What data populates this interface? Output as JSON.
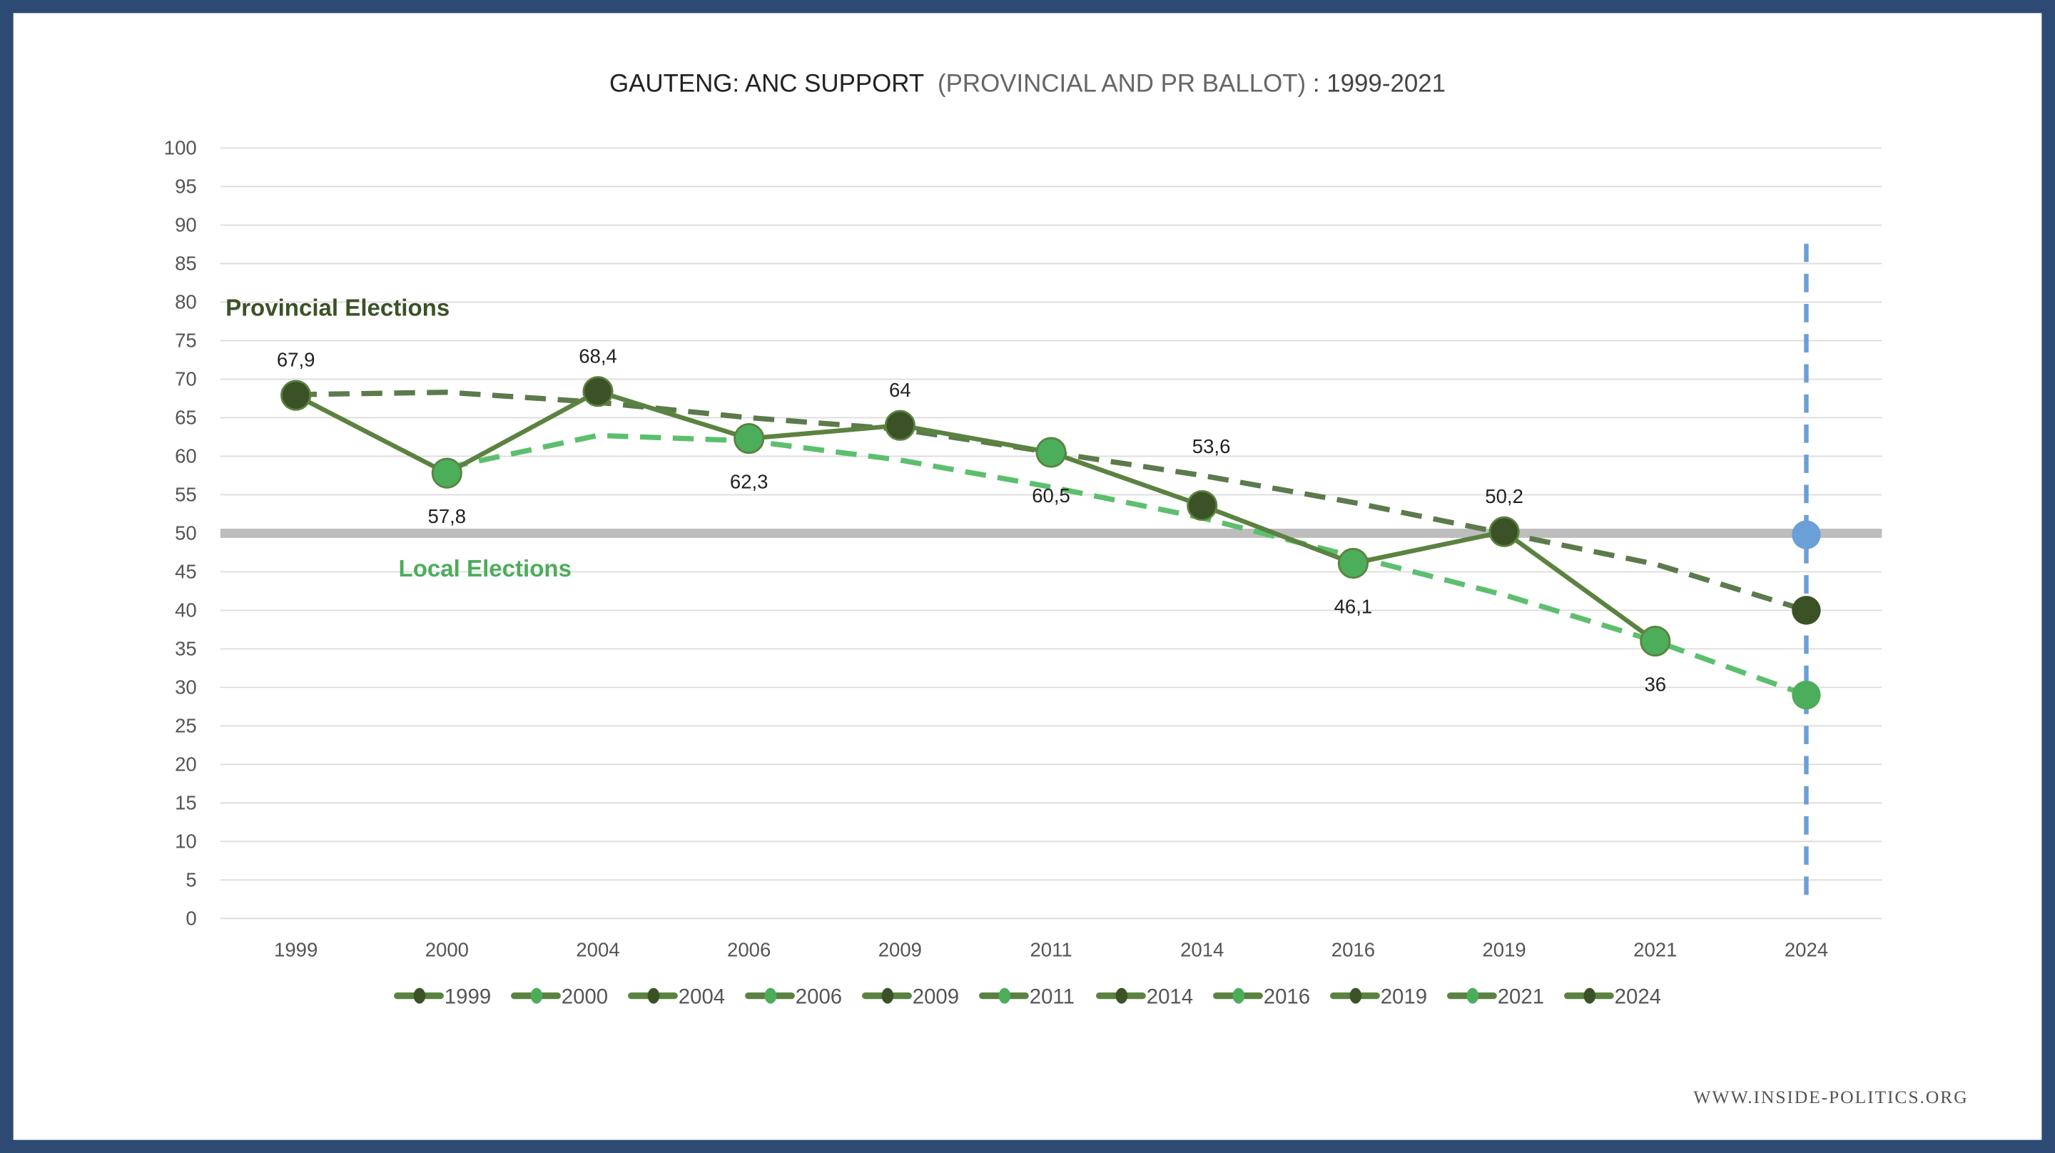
{
  "chart_data": {
    "type": "line",
    "title_bold": "GAUTENG: ANC SUPPORT",
    "title_light": "(PROVINCIAL AND PR BALLOT)",
    "title_end": ": 1999-2021",
    "categories": [
      "1999",
      "2000",
      "2004",
      "2006",
      "2009",
      "2011",
      "2014",
      "2016",
      "2019",
      "2021",
      "2024"
    ],
    "ylim": [
      0,
      100
    ],
    "yticks": [
      0,
      5,
      10,
      15,
      20,
      25,
      30,
      35,
      40,
      45,
      50,
      55,
      60,
      65,
      70,
      75,
      80,
      85,
      90,
      95,
      100
    ],
    "series": [
      {
        "name": "ANC support",
        "values": [
          67.9,
          57.8,
          68.4,
          62.3,
          64,
          60.5,
          53.6,
          46.1,
          50.2,
          36,
          null
        ],
        "labels": [
          "67,9",
          "57,8",
          "68,4",
          "62,3",
          "64",
          "60,5",
          "53,6",
          "46,1",
          "50,2",
          "36",
          ""
        ],
        "election_type": [
          "provincial",
          "local",
          "provincial",
          "local",
          "provincial",
          "local",
          "provincial",
          "local",
          "provincial",
          "local",
          ""
        ]
      }
    ],
    "projections_2024": [
      {
        "name": "threshold",
        "value": 49.8
      },
      {
        "name": "provincial trend",
        "value": 40
      },
      {
        "name": "local trend",
        "value": 29
      }
    ],
    "trend_provincial": [
      68,
      68.3,
      67,
      65,
      63.5,
      60.5,
      57.5,
      54,
      50,
      46,
      40
    ],
    "trend_local": [
      null,
      58.5,
      62.7,
      62,
      59.5,
      56,
      52,
      47,
      42,
      36,
      29
    ],
    "reference_line": 50,
    "annotations": {
      "provincial": "Provincial Elections",
      "local": "Local Elections"
    },
    "legend": [
      "1999",
      "2000",
      "2004",
      "2006",
      "2009",
      "2011",
      "2014",
      "2016",
      "2019",
      "2021",
      "2024"
    ],
    "legend_position": "bottom",
    "grid": true
  },
  "colors": {
    "frame": "#2c4a73",
    "line": "#5b8240",
    "provincial": "#3b5227",
    "local": "#4cad5b",
    "trend_prov": "#5c7a4c",
    "trend_local": "#5cbf6e",
    "blue": "#6a9fd8"
  },
  "footer": "WWW.INSIDE-POLITICS.ORG"
}
